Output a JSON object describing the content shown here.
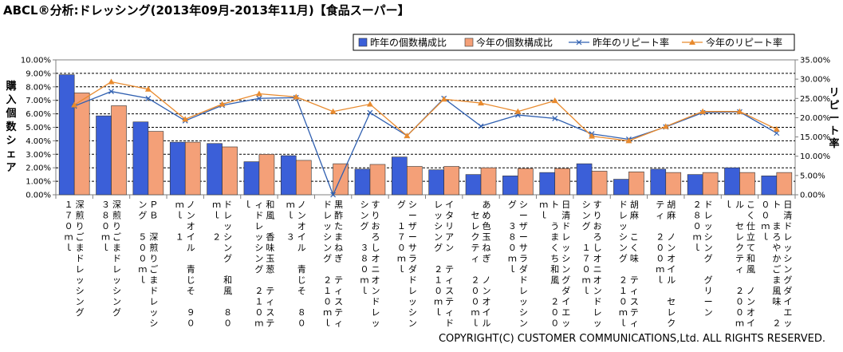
{
  "title": "ABCL®分析:ドレッシング(2013年09月-2013年11月)【食品スーパー】",
  "copyright": "COPYRIGHT(C) CUSTOMER COMMUNICATIONS,Ltd. ALL RIGHTS RESERVED.",
  "colors": {
    "last_year_bar": "#3b5fd8",
    "this_year_bar": "#f4a078",
    "last_year_line": "#2f5fb0",
    "this_year_line": "#e88a2e"
  },
  "chart_data": {
    "type": "bar",
    "title": "",
    "xlabel": "",
    "ylabel": "購入個数シェア",
    "y2label": "リピート率",
    "ylim": [
      0,
      10
    ],
    "y2lim": [
      0,
      35
    ],
    "yticks": [
      "0.00%",
      "1.00%",
      "2.00%",
      "3.00%",
      "4.00%",
      "5.00%",
      "6.00%",
      "7.00%",
      "8.00%",
      "9.00%",
      "10.00%"
    ],
    "y2ticks": [
      "0.00%",
      "5.00%",
      "10.00%",
      "15.00%",
      "20.00%",
      "25.00%",
      "30.00%",
      "35.00%"
    ],
    "grid": true,
    "legend_position": "top-right",
    "categories": [
      "深煎りごまドレッシング　１７０ｍｌ",
      "深煎りごまドレッシング　３８０ｍｌ",
      "ＰＢ　深煎りごまドレッシング　５００ｍｌ",
      "ノンオイル　青じそ　９０ｍｌ　１",
      "ドレッシング　和風　８０ｍｌ　２",
      "和風　香味玉葱　ティスティドレッシング　２１０ｍｌ",
      "ノンオイル　青じそ　８０ｍｌ　３",
      "黒酢たまねぎ　ティスティドレッシング　２１０ｍｌ",
      "すりおろしオニオンドレッシング　３８０ｍｌ",
      "シーザーサラダドレッシング　１７０ｍｌ",
      "イタリアン　ティスティドレッシング　２１０ｍｌ",
      "あめ色玉ねぎ　ノンオイル　セレクティ　２００ｍｌ",
      "シーザーサラダドレッシング　３８０ｍｌ",
      "日清ドレッシングダイエット　うまくち和風　２００ｍｌ",
      "すりおろしオニオンドレッシング　１７０ｍｌ",
      "胡麻　こく味　ティスティドレッシング　２１０ｍｌ",
      "胡麻　ノンオイル　セレクティ　２００ｍｌ",
      "ドレッシング　グリーン　２８０ｍｌ",
      "こく仕立て和風　ノンオイル　セレクティ　２００ｍｌ",
      "日清ドレッシングダイエット　まろやかごま風味　２００ｍｌ"
    ],
    "series": [
      {
        "name": "昨年の個数構成比",
        "kind": "bar",
        "axis": "left",
        "values": [
          8.9,
          5.85,
          5.4,
          3.9,
          3.8,
          2.45,
          2.9,
          0.0,
          1.9,
          2.8,
          1.85,
          1.5,
          1.4,
          1.65,
          2.3,
          1.15,
          1.9,
          1.5,
          2.0,
          1.4
        ]
      },
      {
        "name": "今年の個数構成比",
        "kind": "bar",
        "axis": "left",
        "values": [
          7.55,
          6.6,
          4.7,
          3.9,
          3.55,
          3.0,
          2.55,
          2.3,
          2.25,
          2.1,
          2.1,
          2.0,
          1.95,
          1.95,
          1.75,
          1.7,
          1.65,
          1.65,
          1.65,
          1.65
        ]
      },
      {
        "name": "昨年のリピート率",
        "kind": "line",
        "axis": "right",
        "values": [
          23.0,
          26.8,
          25.0,
          19.2,
          23.2,
          25.0,
          25.2,
          0.0,
          21.3,
          15.3,
          25.0,
          17.8,
          20.7,
          19.8,
          15.8,
          14.4,
          17.6,
          21.3,
          21.5,
          16.0
        ]
      },
      {
        "name": "今年のリピート率",
        "kind": "line",
        "axis": "right",
        "values": [
          23.3,
          29.3,
          27.4,
          19.6,
          23.5,
          26.2,
          25.4,
          21.6,
          23.5,
          15.3,
          24.8,
          23.8,
          21.6,
          24.4,
          15.2,
          14.0,
          17.7,
          21.6,
          21.6,
          17.0
        ]
      }
    ]
  }
}
